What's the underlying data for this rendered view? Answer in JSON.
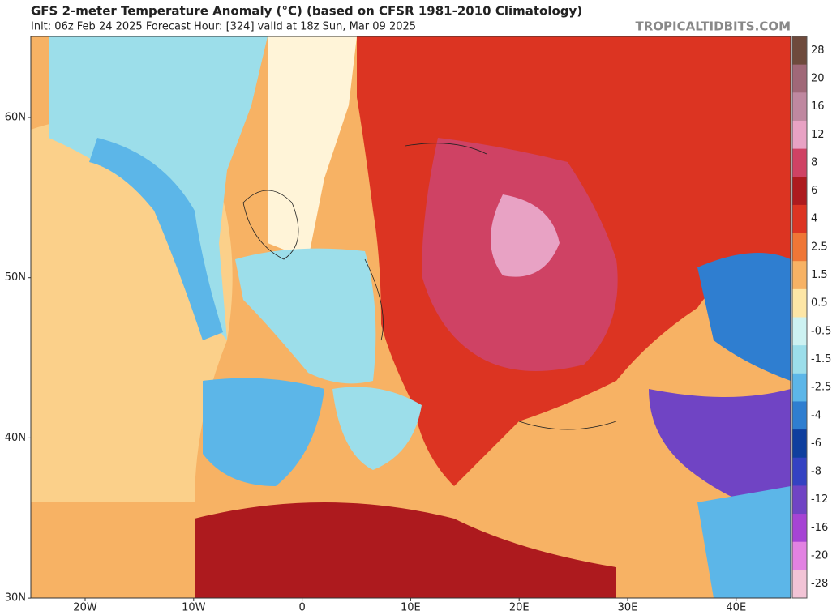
{
  "header": {
    "title": "GFS 2-meter Temperature Anomaly (°C) (based on CFSR 1981-2010 Climatology)",
    "subtitle": "Init: 06z Feb 24 2025   Forecast Hour: [324]   valid at 18z Sun, Mar 09 2025",
    "source": "TROPICALTIDBITS.COM"
  },
  "map": {
    "lat_labels": [
      "60N",
      "50N",
      "40N",
      "30N"
    ],
    "lon_labels": [
      "20W",
      "10W",
      "0",
      "10E",
      "20E",
      "30E",
      "40E"
    ]
  },
  "colorbar": {
    "labels": [
      "28",
      "20",
      "16",
      "12",
      "8",
      "6",
      "4",
      "2.5",
      "1.5",
      "0.5",
      "-0.5",
      "-1.5",
      "-2.5",
      "-4",
      "-6",
      "-8",
      "-12",
      "-16",
      "-20",
      "-28"
    ],
    "colors": [
      "#6e4a3c",
      "#a06878",
      "#bf88a0",
      "#e8a2c4",
      "#cf4264",
      "#ad1a1e",
      "#dc3422",
      "#ef7636",
      "#f7b264",
      "#fde6a6",
      "#cdf2f2",
      "#9cdeea",
      "#5cb6e8",
      "#2f7ed0",
      "#0f3f9e",
      "#3442c2",
      "#7044c4",
      "#a644d4",
      "#e282e2",
      "#f2c4d6"
    ]
  }
}
